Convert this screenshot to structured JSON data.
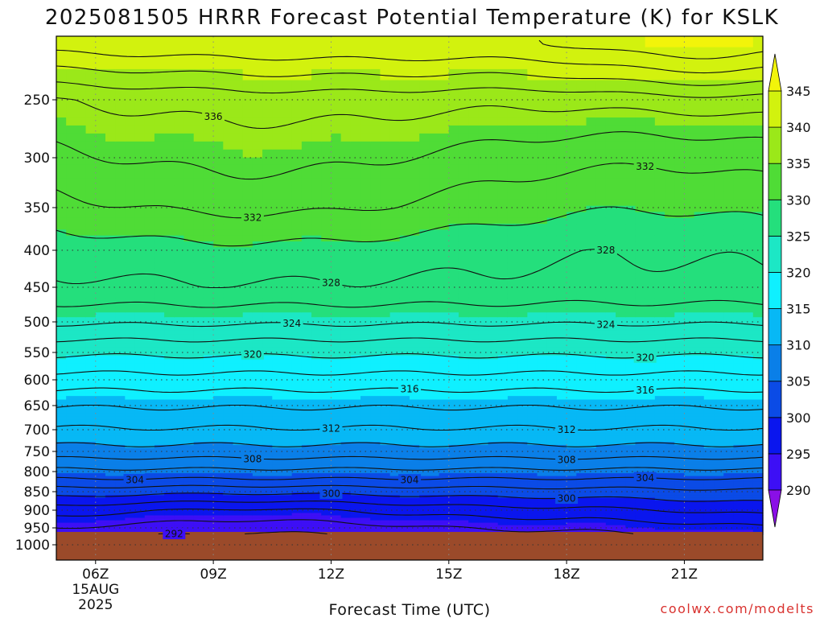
{
  "chart_data": {
    "type": "heatmap",
    "title": "2025081505 HRRR Forecast Potential Temperature (K) for KSLK",
    "xlabel": "Forecast Time (UTC)",
    "ylabel": "",
    "x_ticks": [
      "06Z",
      "09Z",
      "12Z",
      "15Z",
      "18Z",
      "21Z"
    ],
    "x_date_lines": [
      "15AUG",
      "2025"
    ],
    "y_ticks": [
      250,
      300,
      350,
      400,
      450,
      500,
      550,
      600,
      650,
      700,
      750,
      800,
      850,
      900,
      950,
      1000
    ],
    "y_axis_reversed": true,
    "xlim": [
      "2025-08-15 05Z",
      "2025-08-15 23Z"
    ],
    "colorbar_levels": [
      290,
      295,
      300,
      305,
      310,
      315,
      320,
      325,
      330,
      335,
      340,
      345
    ],
    "colorbar_colors": [
      "#8a0fe6",
      "#3d0ff5",
      "#0a16ee",
      "#0b4be6",
      "#0a7fe8",
      "#07b8f5",
      "#0ff0ff",
      "#1ce7c5",
      "#24df7c",
      "#4fdc36",
      "#9be819",
      "#d2f20e",
      "#f2f40a"
    ],
    "terrain_color": "#9b4a2a",
    "grid": true,
    "contour_interval": 2,
    "contour_labels": [
      {
        "value": 336,
        "x": "09Z"
      },
      {
        "value": 332,
        "x": "10Z"
      },
      {
        "value": 332,
        "x": "20Z"
      },
      {
        "value": 328,
        "x": "12Z"
      },
      {
        "value": 328,
        "x": "19Z"
      },
      {
        "value": 324,
        "x": "11Z"
      },
      {
        "value": 324,
        "x": "19Z"
      },
      {
        "value": 320,
        "x": "10Z"
      },
      {
        "value": 320,
        "x": "20Z"
      },
      {
        "value": 316,
        "x": "14Z"
      },
      {
        "value": 316,
        "x": "20Z"
      },
      {
        "value": 312,
        "x": "12Z"
      },
      {
        "value": 312,
        "x": "18Z"
      },
      {
        "value": 308,
        "x": "10Z"
      },
      {
        "value": 308,
        "x": "18Z"
      },
      {
        "value": 304,
        "x": "07Z"
      },
      {
        "value": 304,
        "x": "14Z"
      },
      {
        "value": 304,
        "x": "20Z"
      },
      {
        "value": 300,
        "x": "12Z"
      },
      {
        "value": 300,
        "x": "18Z"
      },
      {
        "value": 292,
        "x": "08Z"
      }
    ]
  },
  "credit": "coolwx.com/modelts"
}
